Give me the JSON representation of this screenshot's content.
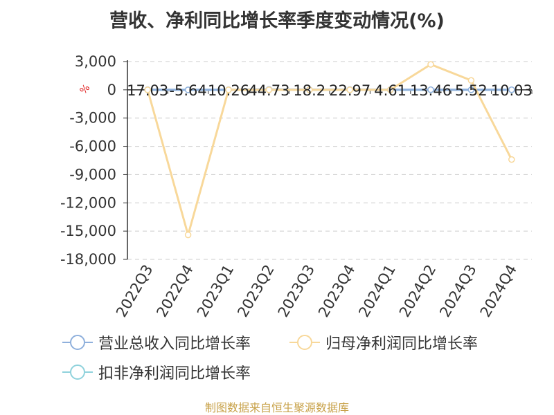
{
  "title": "营收、净利同比增长率季度变动情况(%)",
  "source": "制图数据来自恒生聚源数据库",
  "yaxis_unit": "%",
  "colors": {
    "revenue": "#8fb0dc",
    "net_profit": "#f8d89a",
    "deducted_profit": "#8fd2dc",
    "grid": "#cccccc",
    "axis": "#333333",
    "unit": "#e02020"
  },
  "legend": [
    {
      "label": "营业总收入同比增长率",
      "color_key": "revenue"
    },
    {
      "label": "归母净利润同比增长率",
      "color_key": "net_profit"
    },
    {
      "label": "扣非净利润同比增长率",
      "color_key": "deducted_profit"
    }
  ],
  "chart_data": {
    "type": "line",
    "title": "营收、净利同比增长率季度变动情况(%)",
    "categories": [
      "2022Q3",
      "2022Q4",
      "2023Q1",
      "2023Q2",
      "2023Q3",
      "2023Q4",
      "2024Q1",
      "2024Q2",
      "2024Q3",
      "2024Q4"
    ],
    "yticks": [
      3000,
      0,
      -3000,
      -6000,
      -9000,
      -12000,
      -15000,
      -18000
    ],
    "ytick_labels": [
      "3,000",
      "0",
      "-3,000",
      "-6,000",
      "-9,000",
      "-12,000",
      "-15,000",
      "-18,000"
    ],
    "ylim": [
      -18000,
      3000
    ],
    "grid": true,
    "legend_position": "bottom",
    "series": [
      {
        "name": "营业总收入同比增长率",
        "color_key": "revenue",
        "values": [
          17.03,
          -5.64,
          10.26,
          44.73,
          18.2,
          22.97,
          4.61,
          13.46,
          5.52,
          10.03
        ],
        "labels": [
          "17.03",
          "-5.64",
          "10.26",
          "44.73",
          "18.2",
          "22.97",
          "4.61",
          "13.46",
          "5.52",
          "10.03"
        ]
      },
      {
        "name": "归母净利润同比增长率",
        "color_key": "net_profit",
        "values": [
          0,
          -15400,
          0,
          0,
          0,
          0,
          0,
          2700,
          1000,
          -7400
        ]
      },
      {
        "name": "扣非净利润同比增长率",
        "color_key": "deducted_profit",
        "values": [
          0,
          0,
          0,
          0,
          0,
          0,
          0,
          0,
          0,
          0
        ]
      }
    ]
  }
}
